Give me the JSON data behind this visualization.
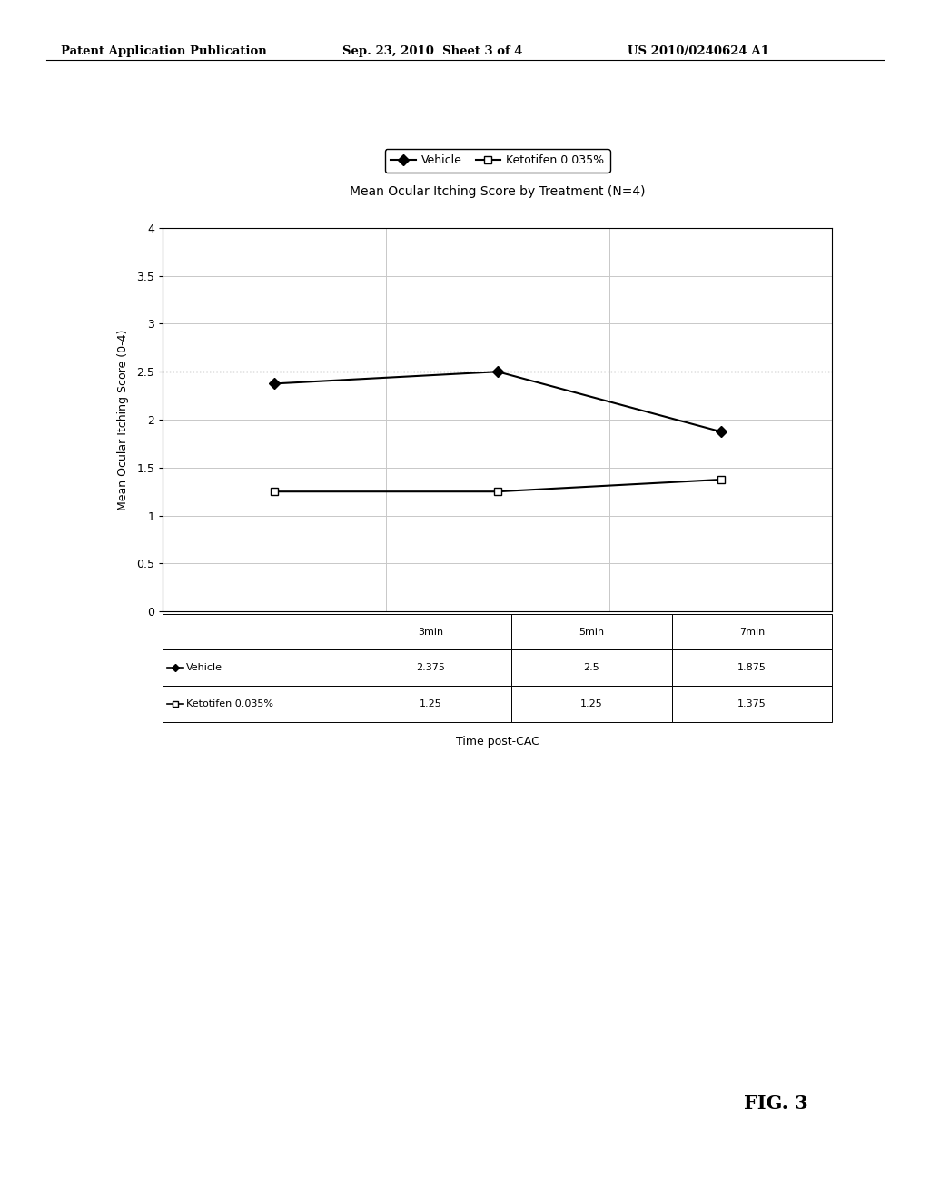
{
  "title": "Mean Ocular Itching Score by Treatment (N=4)",
  "xlabel": "Time post-CAC",
  "ylabel": "Mean Ocular Itching Score (0-4)",
  "x_labels": [
    "3min",
    "5min",
    "7min"
  ],
  "x_positions": [
    0,
    1,
    2
  ],
  "vehicle_values": [
    2.375,
    2.5,
    1.875
  ],
  "ketotifen_values": [
    1.25,
    1.25,
    1.375
  ],
  "vehicle_label": "Vehicle",
  "ketotifen_label": "Ketotifen 0.035%",
  "ylim": [
    0,
    4
  ],
  "yticks": [
    0,
    0.5,
    1.0,
    1.5,
    2.0,
    2.5,
    3.0,
    3.5,
    4.0
  ],
  "vehicle_color": "#000000",
  "ketotifen_color": "#000000",
  "bg_color": "#ffffff",
  "header_text_left": "Patent Application Publication",
  "header_text_mid": "Sep. 23, 2010  Sheet 3 of 4",
  "header_text_right": "US 2010/0240624 A1",
  "fig_label": "FIG. 3",
  "dotted_line_y": 2.5,
  "table_vehicle_row": [
    "2.375",
    "2.5",
    "1.875"
  ],
  "table_ketotifen_row": [
    "1.25",
    "1.25",
    "1.375"
  ]
}
